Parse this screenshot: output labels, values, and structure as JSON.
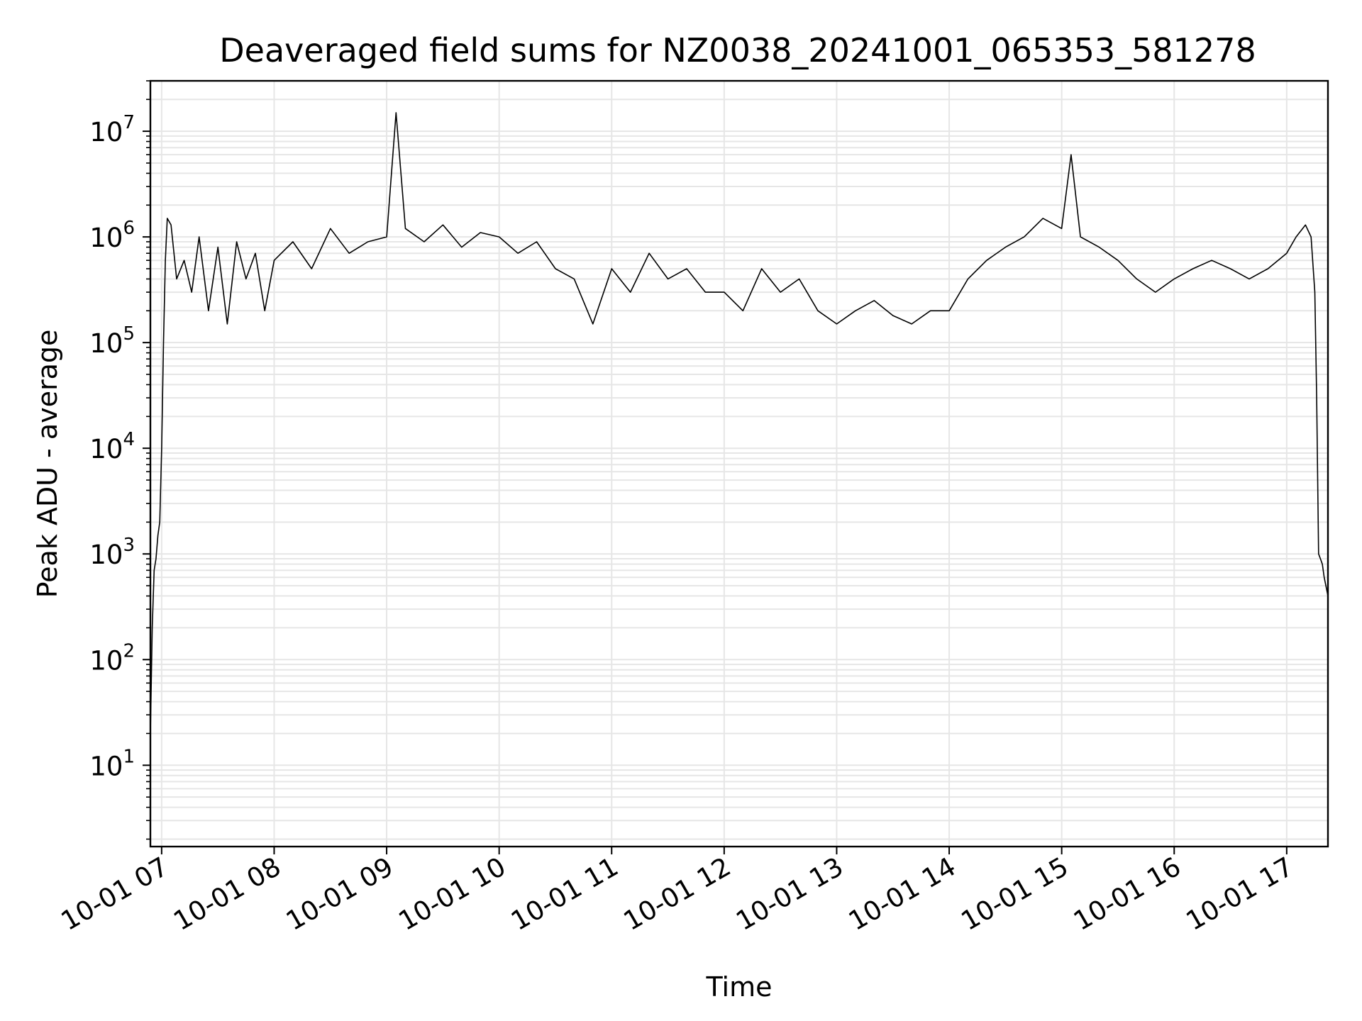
{
  "chart_data": {
    "type": "line",
    "title": "Deaveraged field sums for NZ0038_20241001_065353_581278",
    "xlabel": "Time",
    "ylabel": "Peak ADU - average",
    "yscale": "log",
    "ylim": [
      1.7,
      30000000
    ],
    "xlim": [
      "2024-10-01 06:54",
      "2024-10-01 17:22"
    ],
    "grid": true,
    "x_ticks": [
      "10-01 07",
      "10-01 08",
      "10-01 09",
      "10-01 10",
      "10-01 11",
      "10-01 12",
      "10-01 13",
      "10-01 14",
      "10-01 15",
      "10-01 16",
      "10-01 17"
    ],
    "y_ticks": [
      {
        "value": 10,
        "base": "10",
        "exp": "1"
      },
      {
        "value": 100,
        "base": "10",
        "exp": "2"
      },
      {
        "value": 1000,
        "base": "10",
        "exp": "3"
      },
      {
        "value": 10000,
        "base": "10",
        "exp": "4"
      },
      {
        "value": 100000,
        "base": "10",
        "exp": "5"
      },
      {
        "value": 1000000,
        "base": "10",
        "exp": "6"
      },
      {
        "value": 10000000,
        "base": "10",
        "exp": "7"
      }
    ],
    "line_color": "#000000",
    "grid_color": "#e6e6e6",
    "series": [
      {
        "x": [
          "2024-10-01 06:54",
          "2024-10-01 06:55",
          "2024-10-01 06:56",
          "2024-10-01 06:57",
          "2024-10-01 06:58",
          "2024-10-01 06:59",
          "2024-10-01 07:00",
          "2024-10-01 07:01",
          "2024-10-01 07:02",
          "2024-10-01 07:03",
          "2024-10-01 07:04",
          "2024-10-01 07:05",
          "2024-10-01 07:08",
          "2024-10-01 07:12",
          "2024-10-01 07:16",
          "2024-10-01 07:20",
          "2024-10-01 07:25",
          "2024-10-01 07:30",
          "2024-10-01 07:35",
          "2024-10-01 07:40",
          "2024-10-01 07:45",
          "2024-10-01 07:50",
          "2024-10-01 07:55",
          "2024-10-01 08:00",
          "2024-10-01 08:10",
          "2024-10-01 08:20",
          "2024-10-01 08:30",
          "2024-10-01 08:40",
          "2024-10-01 08:50",
          "2024-10-01 09:00",
          "2024-10-01 09:05",
          "2024-10-01 09:10",
          "2024-10-01 09:20",
          "2024-10-01 09:30",
          "2024-10-01 09:40",
          "2024-10-01 09:50",
          "2024-10-01 10:00",
          "2024-10-01 10:10",
          "2024-10-01 10:20",
          "2024-10-01 10:30",
          "2024-10-01 10:40",
          "2024-10-01 10:50",
          "2024-10-01 11:00",
          "2024-10-01 11:10",
          "2024-10-01 11:20",
          "2024-10-01 11:30",
          "2024-10-01 11:40",
          "2024-10-01 11:50",
          "2024-10-01 12:00",
          "2024-10-01 12:10",
          "2024-10-01 12:20",
          "2024-10-01 12:30",
          "2024-10-01 12:40",
          "2024-10-01 12:50",
          "2024-10-01 13:00",
          "2024-10-01 13:10",
          "2024-10-01 13:20",
          "2024-10-01 13:30",
          "2024-10-01 13:40",
          "2024-10-01 13:50",
          "2024-10-01 14:00",
          "2024-10-01 14:10",
          "2024-10-01 14:20",
          "2024-10-01 14:30",
          "2024-10-01 14:40",
          "2024-10-01 14:50",
          "2024-10-01 15:00",
          "2024-10-01 15:05",
          "2024-10-01 15:10",
          "2024-10-01 15:20",
          "2024-10-01 15:30",
          "2024-10-01 15:40",
          "2024-10-01 15:50",
          "2024-10-01 16:00",
          "2024-10-01 16:10",
          "2024-10-01 16:20",
          "2024-10-01 16:30",
          "2024-10-01 16:40",
          "2024-10-01 16:50",
          "2024-10-01 17:00",
          "2024-10-01 17:05",
          "2024-10-01 17:10",
          "2024-10-01 17:13",
          "2024-10-01 17:15",
          "2024-10-01 17:16",
          "2024-10-01 17:17",
          "2024-10-01 17:18",
          "2024-10-01 17:19",
          "2024-10-01 17:20",
          "2024-10-01 17:22"
        ],
        "values": [
          20,
          200,
          700,
          900,
          1500,
          2000,
          10000,
          100000,
          600000,
          1500000,
          1400000,
          1300000,
          400000,
          600000,
          300000,
          1000000,
          200000,
          800000,
          150000,
          900000,
          400000,
          700000,
          200000,
          600000,
          900000,
          500000,
          1200000,
          700000,
          900000,
          1000000,
          15000000,
          1200000,
          900000,
          1300000,
          800000,
          1100000,
          1000000,
          700000,
          900000,
          500000,
          400000,
          150000,
          500000,
          300000,
          700000,
          400000,
          500000,
          300000,
          300000,
          200000,
          500000,
          300000,
          400000,
          200000,
          150000,
          200000,
          250000,
          180000,
          150000,
          200000,
          200000,
          400000,
          600000,
          800000,
          1000000,
          1500000,
          1200000,
          6000000,
          1000000,
          800000,
          600000,
          400000,
          300000,
          400000,
          500000,
          600000,
          500000,
          400000,
          500000,
          700000,
          1000000,
          1300000,
          1000000,
          300000,
          30000,
          1000,
          900,
          800,
          600,
          400
        ]
      }
    ]
  }
}
